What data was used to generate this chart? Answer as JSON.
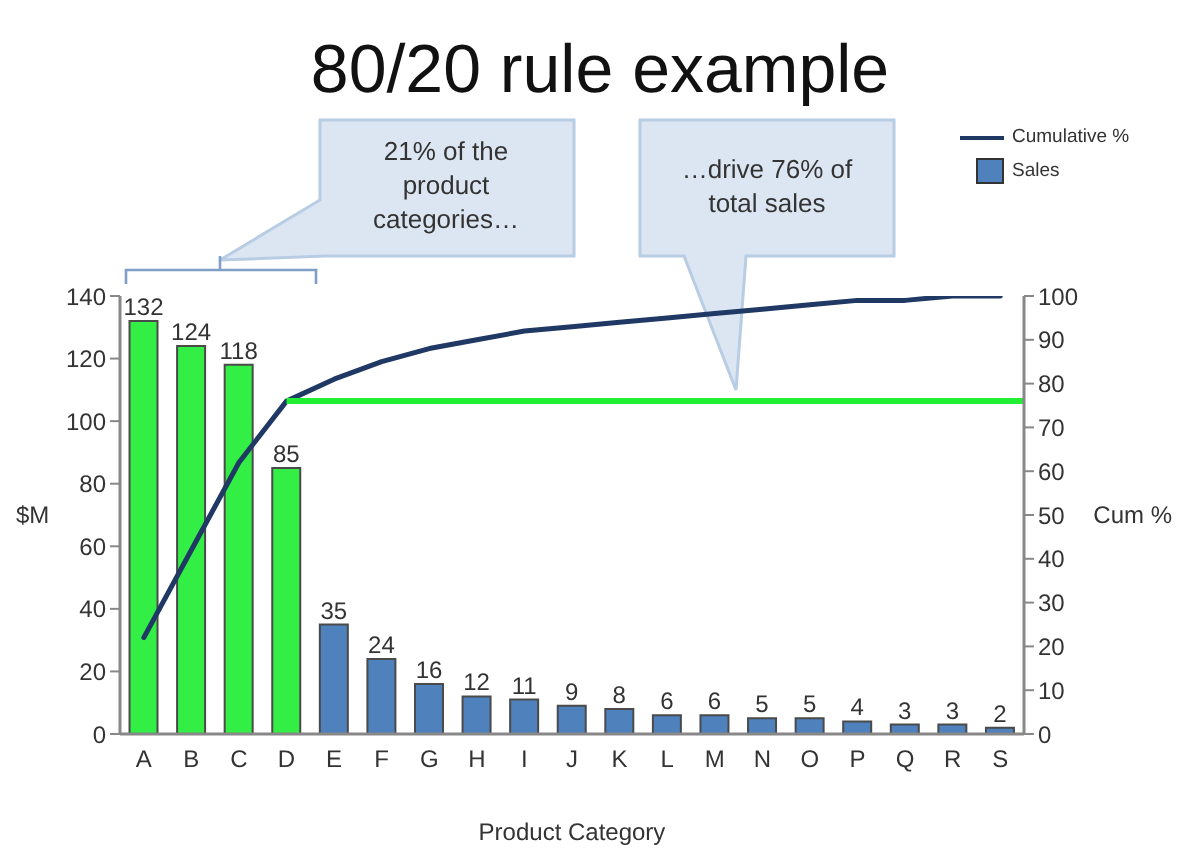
{
  "chart_data": {
    "type": "bar",
    "title": "80/20 rule example",
    "xlabel": "Product Category",
    "ylabel": "$M",
    "y2label": "Cum %",
    "categories": [
      "A",
      "B",
      "C",
      "D",
      "E",
      "F",
      "G",
      "H",
      "I",
      "J",
      "K",
      "L",
      "M",
      "N",
      "O",
      "P",
      "Q",
      "R",
      "S"
    ],
    "series": [
      {
        "type": "line",
        "name": "Cumulative %",
        "color": "#1f3864",
        "axis": "y2",
        "values": [
          22,
          42,
          62,
          76,
          81,
          85,
          88,
          90,
          92,
          93,
          94,
          95,
          96,
          97,
          98,
          99,
          99,
          100,
          100
        ]
      },
      {
        "name": "Sales",
        "color": "#4f81bd",
        "colors": [
          "#33ee44",
          "#33ee44",
          "#33ee44",
          "#33ee44",
          "#4f81bd",
          "#4f81bd",
          "#4f81bd",
          "#4f81bd",
          "#4f81bd",
          "#4f81bd",
          "#4f81bd",
          "#4f81bd",
          "#4f81bd",
          "#4f81bd",
          "#4f81bd",
          "#4f81bd",
          "#4f81bd",
          "#4f81bd",
          "#4f81bd"
        ],
        "values": [
          132,
          124,
          118,
          85,
          35,
          24,
          16,
          12,
          11,
          9,
          8,
          6,
          6,
          5,
          5,
          4,
          3,
          3,
          2
        ],
        "value_labels": [
          "132",
          "124",
          "118",
          "85",
          "35",
          "24",
          "16",
          "12",
          "11",
          "9",
          "8",
          "6",
          "6",
          "5",
          "5",
          "4",
          "3",
          "3",
          "2"
        ]
      }
    ],
    "ylim": [
      0,
      140
    ],
    "yticks": [
      0,
      20,
      40,
      60,
      80,
      100,
      120,
      140
    ],
    "y2lim": [
      0,
      100
    ],
    "y2ticks": [
      0,
      10,
      20,
      30,
      40,
      50,
      60,
      70,
      80,
      90,
      100
    ],
    "ref_lines": [
      {
        "axis": "y2",
        "value": 76,
        "color": "#22ee33"
      }
    ],
    "annotations": [
      "21% of the product categories…",
      "…drive 76% of total sales"
    ],
    "legend": "top right",
    "marker": "none"
  }
}
